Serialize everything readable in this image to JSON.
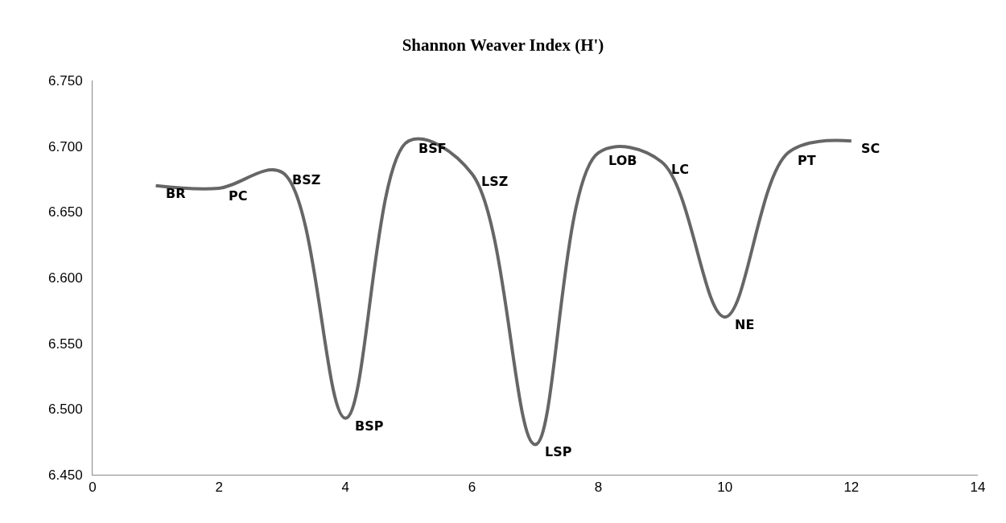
{
  "chart_data": {
    "type": "line",
    "title": "Shannon Weaver Index (H')",
    "x": [
      1,
      2,
      3,
      4,
      5,
      6,
      7,
      8,
      9,
      10,
      11,
      12
    ],
    "series": [
      {
        "color": "#666666",
        "values": [
          6.67,
          6.668,
          6.68,
          6.493,
          6.704,
          6.679,
          6.473,
          6.695,
          6.688,
          6.57,
          6.695,
          6.704
        ]
      }
    ],
    "annotations": [
      {
        "text": "BR",
        "x": 1,
        "y": 6.67
      },
      {
        "text": "PC",
        "x": 2,
        "y": 6.668
      },
      {
        "text": "BSZ",
        "x": 3,
        "y": 6.68
      },
      {
        "text": "BSP",
        "x": 4,
        "y": 6.493
      },
      {
        "text": "BSF",
        "x": 5,
        "y": 6.704
      },
      {
        "text": "LSZ",
        "x": 6,
        "y": 6.679
      },
      {
        "text": "LSP",
        "x": 7,
        "y": 6.473
      },
      {
        "text": "LOB",
        "x": 8,
        "y": 6.695
      },
      {
        "text": "LC",
        "x": 9,
        "y": 6.688
      },
      {
        "text": "NE",
        "x": 10,
        "y": 6.57
      },
      {
        "text": "PT",
        "x": 11,
        "y": 6.695
      },
      {
        "text": "SC",
        "x": 12,
        "y": 6.704
      }
    ],
    "xlim": [
      0,
      14
    ],
    "xticks": [
      0,
      2,
      4,
      6,
      8,
      10,
      12,
      14
    ],
    "ylim": [
      6.45,
      6.75
    ],
    "yticks": [
      {
        "value": 6.45,
        "label": "6.450"
      },
      {
        "value": 6.5,
        "label": "6.500"
      },
      {
        "value": 6.55,
        "label": "6.550"
      },
      {
        "value": 6.6,
        "label": "6.600"
      },
      {
        "value": 6.65,
        "label": "6.650"
      },
      {
        "value": 6.7,
        "label": "6.700"
      },
      {
        "value": 6.75,
        "label": "6.750"
      }
    ],
    "grid": false,
    "marker": "none",
    "line_style": "solid"
  }
}
